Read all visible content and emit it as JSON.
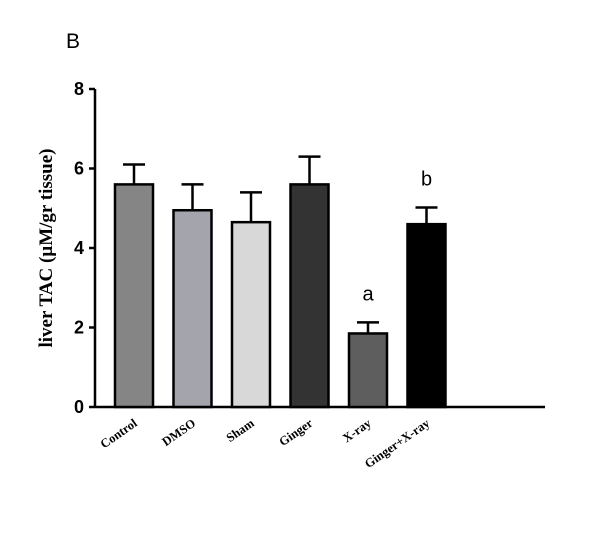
{
  "chart_data": {
    "type": "bar",
    "panel_label": "B",
    "ylabel": "liver TAC (µM/gr tissue)",
    "ylim": [
      0,
      8
    ],
    "yticks": [
      "0",
      "2",
      "4",
      "6",
      "8"
    ],
    "categories": [
      "Control",
      "DMSO",
      "Sham",
      "Ginger",
      "X-ray",
      "Ginger+X-ray"
    ],
    "values": [
      5.6,
      4.95,
      4.65,
      5.6,
      1.85,
      4.6
    ],
    "errors": [
      0.5,
      0.65,
      0.75,
      0.7,
      0.28,
      0.42
    ],
    "annotations": [
      "",
      "",
      "",
      "",
      "a",
      "b"
    ],
    "colors": [
      "#858585",
      "#a4a4ac",
      "#d8d8d8",
      "#333333",
      "#5e5e5e",
      "#000000"
    ],
    "grid": false
  }
}
